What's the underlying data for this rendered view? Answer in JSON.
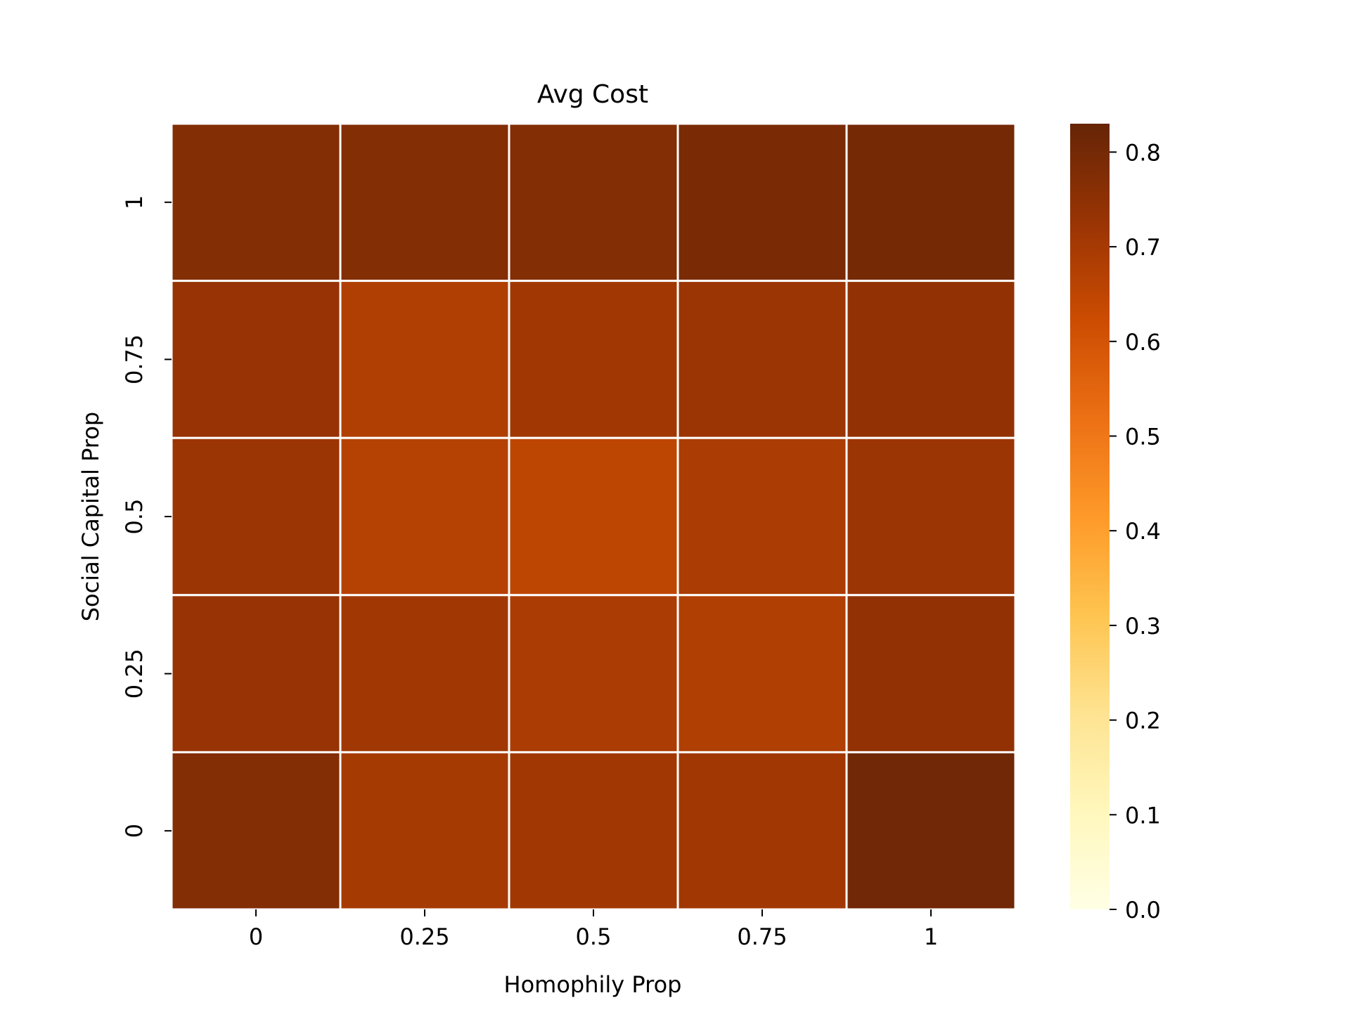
{
  "chart_data": {
    "type": "heatmap",
    "title": "Avg Cost",
    "xlabel": "Homophily Prop",
    "ylabel": "Social Capital Prop",
    "x_categories": [
      "0",
      "0.25",
      "0.5",
      "0.75",
      "1"
    ],
    "y_categories": [
      "1",
      "0.75",
      "0.5",
      "0.25",
      "0"
    ],
    "values": [
      [
        0.77,
        0.77,
        0.77,
        0.79,
        0.8
      ],
      [
        0.73,
        0.68,
        0.71,
        0.72,
        0.74
      ],
      [
        0.72,
        0.67,
        0.65,
        0.69,
        0.72
      ],
      [
        0.73,
        0.71,
        0.69,
        0.68,
        0.74
      ],
      [
        0.77,
        0.7,
        0.71,
        0.71,
        0.81
      ]
    ],
    "colorbar": {
      "range": [
        0,
        0.83
      ],
      "ticks": [
        "0.0",
        "0.1",
        "0.2",
        "0.3",
        "0.4",
        "0.5",
        "0.6",
        "0.7",
        "0.8"
      ],
      "colormap": [
        "#ffffe5",
        "#fff7bc",
        "#fee391",
        "#fec44f",
        "#fe9929",
        "#ec7014",
        "#cc4c02",
        "#993404",
        "#662506"
      ]
    },
    "grid": false,
    "cell_border_color": "#ffffff"
  }
}
